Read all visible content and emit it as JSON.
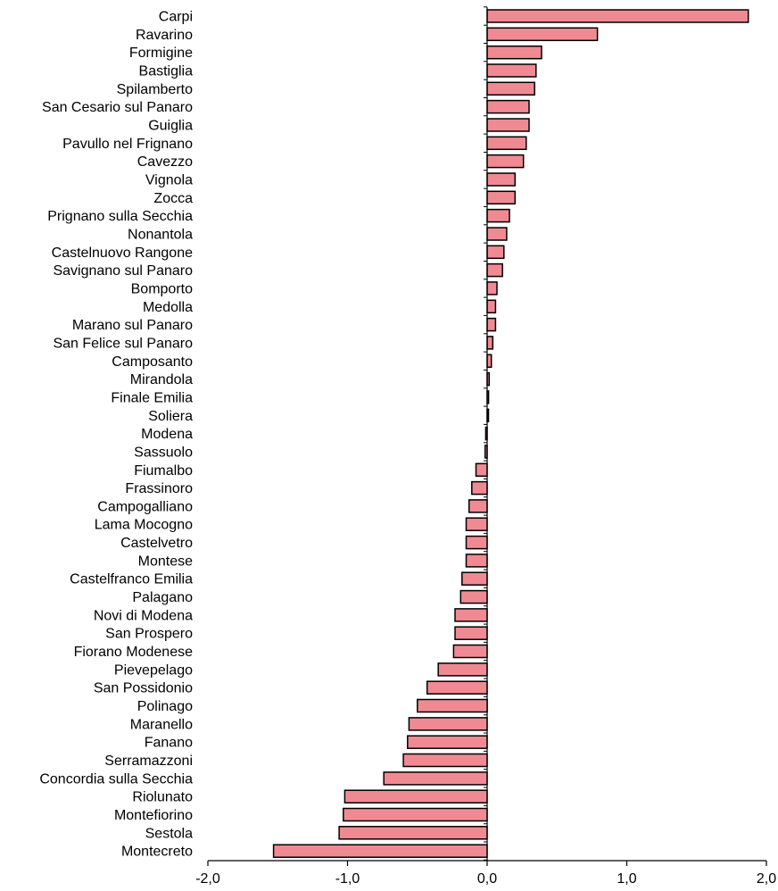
{
  "chart_data": {
    "type": "bar",
    "orientation": "horizontal",
    "categories": [
      "Carpi",
      "Ravarino",
      "Formigine",
      "Bastiglia",
      "Spilamberto",
      "San Cesario sul Panaro",
      "Guiglia",
      "Pavullo nel Frignano",
      "Cavezzo",
      "Vignola",
      "Zocca",
      "Prignano sulla Secchia",
      "Nonantola",
      "Castelnuovo Rangone",
      "Savignano sul Panaro",
      "Bomporto",
      "Medolla",
      "Marano sul Panaro",
      "San Felice sul Panaro",
      "Camposanto",
      "Mirandola",
      "Finale Emilia",
      "Soliera",
      "Modena",
      "Sassuolo",
      "Fiumalbo",
      "Frassinoro",
      "Campogalliano",
      "Lama Mocogno",
      "Castelvetro",
      "Montese",
      "Castelfranco Emilia",
      "Palagano",
      "Novi di Modena",
      "San Prospero",
      "Fiorano Modenese",
      "Pievepelago",
      "San Possidonio",
      "Polinago",
      "Maranello",
      "Fanano",
      "Serramazzoni",
      "Concordia sulla Secchia",
      "Riolunato",
      "Montefiorino",
      "Sestola",
      "Montecreto"
    ],
    "values": [
      1.87,
      0.79,
      0.39,
      0.35,
      0.34,
      0.3,
      0.3,
      0.28,
      0.26,
      0.2,
      0.2,
      0.16,
      0.14,
      0.12,
      0.11,
      0.07,
      0.06,
      0.06,
      0.04,
      0.03,
      0.015,
      0.01,
      0.005,
      -0.01,
      -0.015,
      -0.08,
      -0.11,
      -0.13,
      -0.15,
      -0.15,
      -0.15,
      -0.18,
      -0.19,
      -0.23,
      -0.23,
      -0.24,
      -0.35,
      -0.43,
      -0.5,
      -0.56,
      -0.57,
      -0.6,
      -0.74,
      -1.02,
      -1.03,
      -1.06,
      -1.53
    ],
    "xlim": [
      -2.0,
      2.0
    ],
    "xticks": [
      -2.0,
      -1.0,
      0.0,
      1.0,
      2.0
    ],
    "xtick_labels": [
      "-2,0",
      "-1,0",
      "0,0",
      "1,0",
      "2,0"
    ],
    "grid": false,
    "bar_color": "#f08a92",
    "bar_edge_color": "#000000"
  }
}
